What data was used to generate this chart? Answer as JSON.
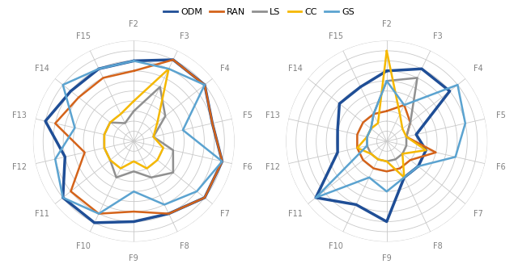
{
  "categories": [
    "F2",
    "F3",
    "F4",
    "F5",
    "F6",
    "F7",
    "F8",
    "F9",
    "F10",
    "F11",
    "F12",
    "F13",
    "F14",
    "F15"
  ],
  "series_names": [
    "ODM",
    "RAN",
    "LS",
    "CC",
    "GS"
  ],
  "colors": [
    "#1F4E96",
    "#D4631A",
    "#909090",
    "#F5B800",
    "#5BA3D0"
  ],
  "linewidths": [
    2.5,
    1.8,
    1.8,
    1.8,
    1.8
  ],
  "chart1": {
    "ODM": [
      8,
      9,
      9,
      8,
      9,
      9,
      8,
      8,
      9,
      9,
      7,
      9,
      8,
      8
    ],
    "RAN": [
      7,
      9,
      9,
      8,
      9,
      9,
      8,
      7,
      8,
      8,
      5,
      8,
      7,
      7
    ],
    "LS": [
      3,
      6,
      4,
      2,
      4,
      5,
      4,
      3,
      4,
      3,
      3,
      3,
      3,
      2
    ],
    "CC": [
      4,
      8,
      3,
      2,
      3,
      3,
      3,
      2,
      3,
      3,
      3,
      3,
      3,
      3
    ],
    "GS": [
      8,
      8,
      9,
      5,
      9,
      8,
      7,
      5,
      8,
      9,
      8,
      6,
      9,
      8
    ]
  },
  "chart2": {
    "ODM": [
      7,
      8,
      8,
      3,
      4,
      4,
      4,
      8,
      7,
      9,
      5,
      5,
      6,
      6
    ],
    "RAN": [
      3,
      4,
      3,
      2,
      5,
      3,
      3,
      3,
      3,
      3,
      3,
      3,
      3,
      3
    ],
    "LS": [
      6,
      7,
      3,
      2,
      2,
      2,
      2,
      2,
      2,
      2,
      2,
      2,
      2,
      3
    ],
    "CC": [
      9,
      3,
      2,
      2,
      4,
      2,
      4,
      2,
      2,
      2,
      3,
      2,
      2,
      2
    ],
    "GS": [
      6,
      4,
      9,
      8,
      7,
      4,
      4,
      5,
      4,
      9,
      2,
      2,
      2,
      3
    ]
  },
  "n_rings": 10,
  "max_val": 10,
  "bg_color": "#FFFFFF",
  "grid_color": "#C8C8C8",
  "label_color": "#808080",
  "label_fontsize": 7.0
}
